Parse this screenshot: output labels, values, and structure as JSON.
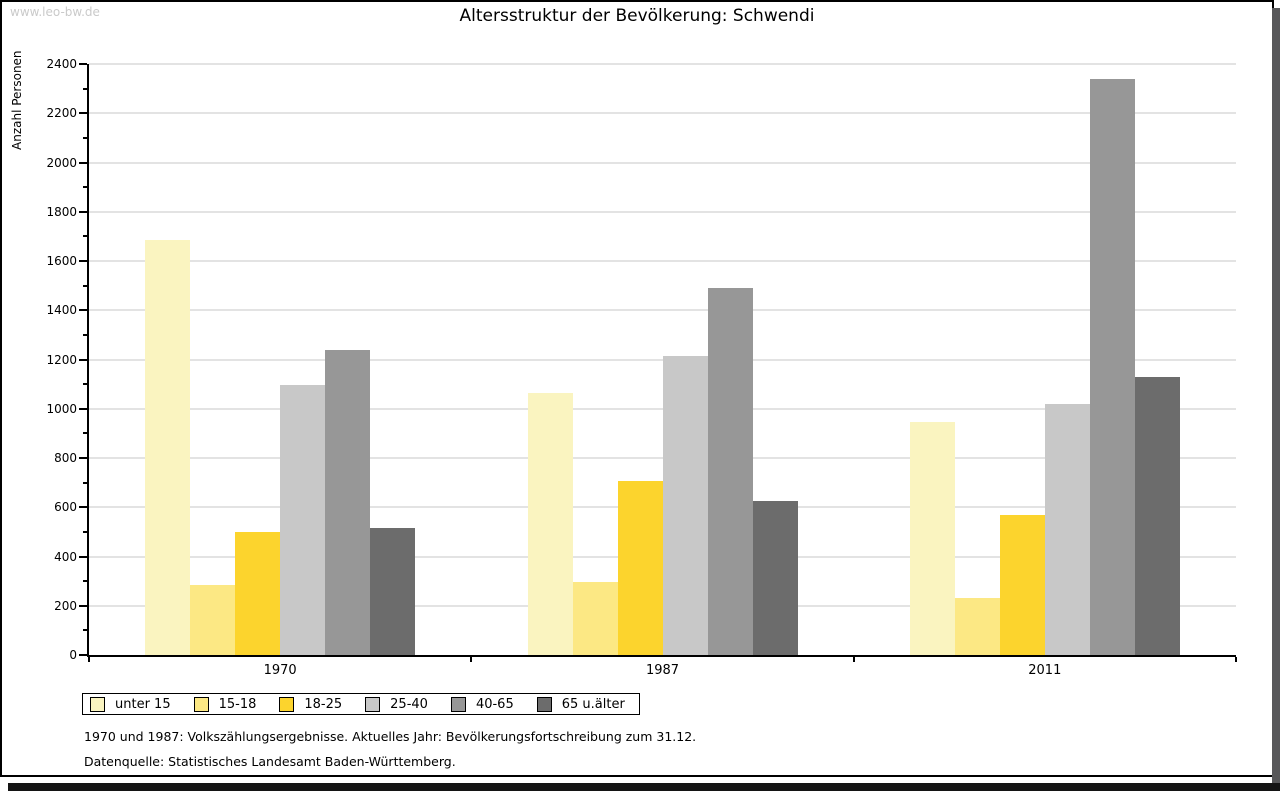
{
  "watermark": "www.leo-bw.de",
  "chart_data": {
    "type": "bar",
    "title": "Altersstruktur der Bevölkerung: Schwendi",
    "ylabel": "Anzahl Personen",
    "xlabel": "",
    "categories": [
      "1970",
      "1987",
      "2011"
    ],
    "series": [
      {
        "name": "unter 15",
        "color": "#faf4c0",
        "values": [
          1685,
          1065,
          945
        ]
      },
      {
        "name": "15-18",
        "color": "#fce884",
        "values": [
          285,
          295,
          230
        ]
      },
      {
        "name": "18-25",
        "color": "#fcd42d",
        "values": [
          500,
          705,
          570
        ]
      },
      {
        "name": "25-40",
        "color": "#c8c8c8",
        "values": [
          1095,
          1215,
          1020
        ]
      },
      {
        "name": "40-65",
        "color": "#979797",
        "values": [
          1240,
          1490,
          2340
        ]
      },
      {
        "name": "65 u.älter",
        "color": "#6c6c6c",
        "values": [
          515,
          625,
          1130
        ]
      }
    ],
    "ylim": [
      0,
      2400
    ],
    "ytick_step": 200,
    "yminor_step": 100,
    "grid": true,
    "legend_position": "bottom-left"
  },
  "footer": {
    "line1": "1970 und 1987: Volkszählungsergebnisse. Aktuelles Jahr: Bevölkerungsfortschreibung zum 31.12.",
    "line2": "Datenquelle: Statistisches Landesamt Baden-Württemberg."
  }
}
